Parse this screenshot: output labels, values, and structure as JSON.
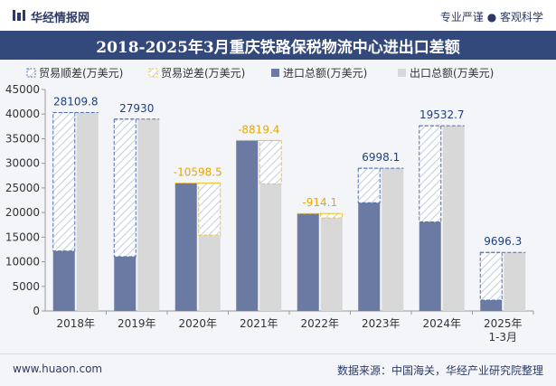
{
  "header": {
    "brand": "华经情报网",
    "slogan": "专业严谨 ● 客观科学"
  },
  "footer": {
    "website": "www.huaon.com",
    "source": "数据来源：中国海关，华经产业研究院整理"
  },
  "colors": {
    "import": "#6a7aa3",
    "export": "#d8d8d8",
    "surplus": "#4f6fb0",
    "deficit": "#f2c12e",
    "title_bg": "#33497c"
  },
  "chart_data": {
    "type": "bar",
    "title": "2018-2025年3月重庆铁路保税物流中心进出口差额",
    "categories": [
      "2018年",
      "2019年",
      "2020年",
      "2021年",
      "2022年",
      "2023年",
      "2024年",
      "2025年\n1-3月"
    ],
    "series": [
      {
        "name": "进口总额(万美元)",
        "values": [
          12200,
          11050,
          26000,
          34650,
          19800,
          22000,
          18100,
          2200
        ]
      },
      {
        "name": "出口总额(万美元)",
        "values": [
          40310,
          38980,
          15401,
          25830,
          18886,
          28998,
          37633,
          11896
        ]
      }
    ],
    "balance": {
      "surplus_name": "贸易顺差(万美元)",
      "deficit_name": "贸易逆差(万美元)",
      "labels": [
        "28109.8",
        "27930",
        "-10598.5",
        "-8819.4",
        "-914.1",
        "6998.1",
        "19532.7",
        "9696.3"
      ]
    },
    "ylim": [
      0,
      45000
    ],
    "yticks": [
      "0",
      "5000",
      "10000",
      "15000",
      "20000",
      "25000",
      "30000",
      "35000",
      "40000",
      "45000"
    ],
    "legend_position": "top",
    "grid": false
  }
}
